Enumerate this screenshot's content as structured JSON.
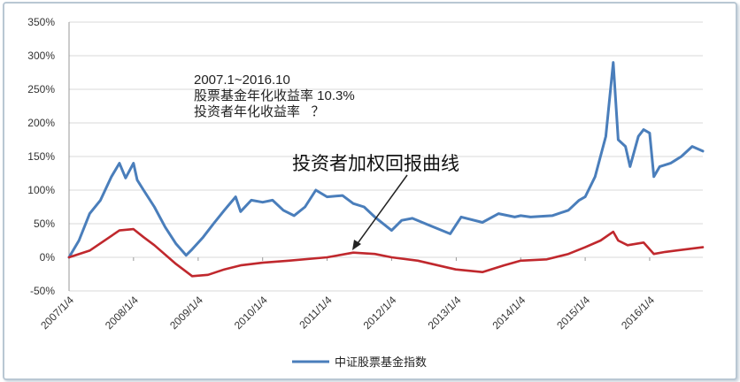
{
  "chart_data": {
    "type": "line",
    "title": "",
    "ylim": [
      -50,
      350
    ],
    "y_ticks": [
      "350%",
      "300%",
      "250%",
      "200%",
      "150%",
      "100%",
      "50%",
      "0%",
      "-50%"
    ],
    "x_ticks": [
      "2007/1/4",
      "2008/1/4",
      "2009/1/4",
      "2010/1/4",
      "2011/1/4",
      "2012/1/4",
      "2013/1/4",
      "2014/1/4",
      "2015/1/4",
      "2016/1/4"
    ],
    "grid": "horizontal",
    "legend_placement": "bottom",
    "series": [
      {
        "name": "中证股票基金指数",
        "color": "#4a7ebb",
        "points": [
          [
            "2007-01-04",
            0
          ],
          [
            "2007-03-01",
            25
          ],
          [
            "2007-05-01",
            65
          ],
          [
            "2007-07-01",
            85
          ],
          [
            "2007-09-01",
            120
          ],
          [
            "2007-10-16",
            140
          ],
          [
            "2007-11-20",
            118
          ],
          [
            "2008-01-04",
            140
          ],
          [
            "2008-01-25",
            115
          ],
          [
            "2008-03-01",
            100
          ],
          [
            "2008-05-01",
            75
          ],
          [
            "2008-07-01",
            45
          ],
          [
            "2008-09-01",
            20
          ],
          [
            "2008-10-28",
            3
          ],
          [
            "2008-12-01",
            12
          ],
          [
            "2009-02-01",
            30
          ],
          [
            "2009-04-01",
            50
          ],
          [
            "2009-06-01",
            70
          ],
          [
            "2009-08-04",
            90
          ],
          [
            "2009-09-01",
            68
          ],
          [
            "2009-11-01",
            85
          ],
          [
            "2010-01-04",
            82
          ],
          [
            "2010-03-01",
            85
          ],
          [
            "2010-05-01",
            70
          ],
          [
            "2010-07-01",
            62
          ],
          [
            "2010-09-01",
            75
          ],
          [
            "2010-11-01",
            100
          ],
          [
            "2011-01-04",
            90
          ],
          [
            "2011-04-01",
            92
          ],
          [
            "2011-06-01",
            80
          ],
          [
            "2011-08-01",
            75
          ],
          [
            "2011-10-01",
            60
          ],
          [
            "2012-01-04",
            40
          ],
          [
            "2012-03-01",
            55
          ],
          [
            "2012-05-01",
            58
          ],
          [
            "2012-08-01",
            48
          ],
          [
            "2012-12-01",
            35
          ],
          [
            "2013-02-01",
            60
          ],
          [
            "2013-06-01",
            52
          ],
          [
            "2013-09-01",
            65
          ],
          [
            "2013-12-01",
            60
          ],
          [
            "2014-01-04",
            62
          ],
          [
            "2014-03-01",
            60
          ],
          [
            "2014-07-01",
            62
          ],
          [
            "2014-10-01",
            70
          ],
          [
            "2014-12-01",
            85
          ],
          [
            "2015-01-04",
            90
          ],
          [
            "2015-03-01",
            120
          ],
          [
            "2015-05-01",
            180
          ],
          [
            "2015-06-12",
            290
          ],
          [
            "2015-07-10",
            175
          ],
          [
            "2015-08-20",
            165
          ],
          [
            "2015-09-15",
            135
          ],
          [
            "2015-11-01",
            180
          ],
          [
            "2015-12-01",
            190
          ],
          [
            "2016-01-04",
            185
          ],
          [
            "2016-01-28",
            120
          ],
          [
            "2016-03-01",
            135
          ],
          [
            "2016-05-01",
            140
          ],
          [
            "2016-07-01",
            150
          ],
          [
            "2016-09-01",
            165
          ],
          [
            "2016-10-31",
            158
          ]
        ]
      },
      {
        "name": "",
        "color": "#c0282d",
        "points": [
          [
            "2007-01-04",
            0
          ],
          [
            "2007-05-01",
            10
          ],
          [
            "2007-10-16",
            40
          ],
          [
            "2008-01-04",
            42
          ],
          [
            "2008-03-01",
            30
          ],
          [
            "2008-05-01",
            18
          ],
          [
            "2008-09-01",
            -10
          ],
          [
            "2008-12-01",
            -28
          ],
          [
            "2009-03-01",
            -26
          ],
          [
            "2009-06-01",
            -18
          ],
          [
            "2009-09-01",
            -12
          ],
          [
            "2010-01-04",
            -8
          ],
          [
            "2010-06-01",
            -5
          ],
          [
            "2011-01-04",
            0
          ],
          [
            "2011-06-01",
            7
          ],
          [
            "2011-10-01",
            5
          ],
          [
            "2012-01-04",
            0
          ],
          [
            "2012-06-01",
            -5
          ],
          [
            "2013-01-01",
            -18
          ],
          [
            "2013-06-01",
            -22
          ],
          [
            "2013-10-01",
            -12
          ],
          [
            "2014-01-04",
            -5
          ],
          [
            "2014-06-01",
            -3
          ],
          [
            "2014-10-01",
            5
          ],
          [
            "2015-01-04",
            15
          ],
          [
            "2015-04-01",
            25
          ],
          [
            "2015-06-12",
            38
          ],
          [
            "2015-07-10",
            25
          ],
          [
            "2015-09-01",
            18
          ],
          [
            "2015-12-01",
            22
          ],
          [
            "2016-01-28",
            5
          ],
          [
            "2016-04-01",
            8
          ],
          [
            "2016-10-31",
            15
          ]
        ]
      }
    ],
    "annotations": {
      "period": "2007.1~2016.10",
      "fund_return": "股票基金年化收益率 10.3%",
      "investor_return": "投资者年化收益率   ？",
      "curve_label": "投资者加权回报曲线"
    }
  }
}
